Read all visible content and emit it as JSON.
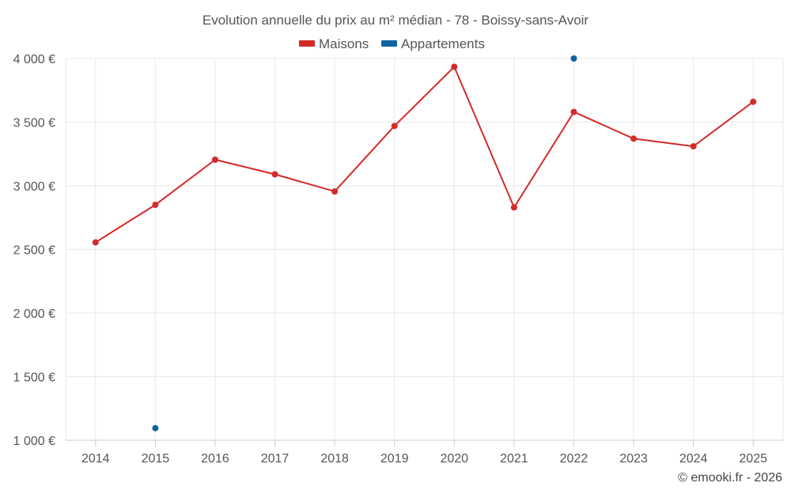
{
  "chart_data": {
    "type": "line",
    "title": "Evolution annuelle du prix au m² médian - 78 - Boissy-sans-Avoir",
    "categories": [
      "2014",
      "2015",
      "2016",
      "2017",
      "2018",
      "2019",
      "2020",
      "2021",
      "2022",
      "2023",
      "2024",
      "2025"
    ],
    "series": [
      {
        "name": "Maisons",
        "color": "#d42a2a",
        "line": true,
        "values": [
          2555,
          2850,
          3205,
          3090,
          2955,
          3470,
          3935,
          2830,
          3580,
          3370,
          3310,
          3660
        ]
      },
      {
        "name": "Appartements",
        "color": "#0d64a0",
        "line": false,
        "values": [
          null,
          1095,
          null,
          null,
          null,
          null,
          null,
          null,
          4000,
          null,
          null,
          null
        ]
      }
    ],
    "ylim": [
      1000,
      4000
    ],
    "yticks": [
      1000,
      1500,
      2000,
      2500,
      3000,
      3500,
      4000
    ],
    "ytick_labels": [
      "1 000 €",
      "1 500 €",
      "2 000 €",
      "2 500 €",
      "3 000 €",
      "3 500 €",
      "4 000 €"
    ],
    "xlabel": "",
    "ylabel": "",
    "grid": true,
    "legend_position": "top-center"
  },
  "credit": "© emooki.fr - 2026"
}
